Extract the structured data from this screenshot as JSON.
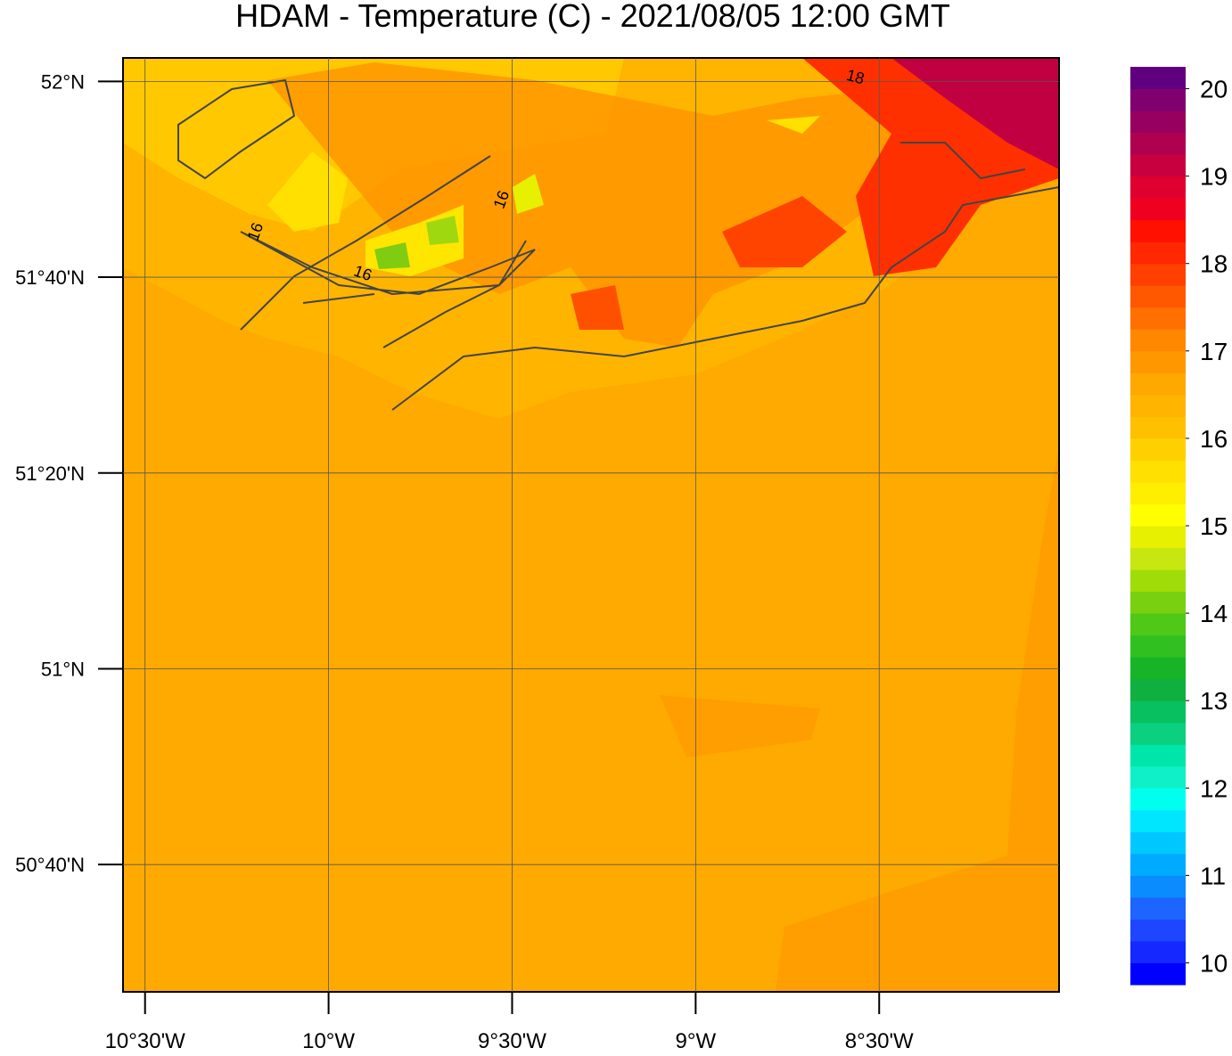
{
  "title": "HDAM - Temperature (C)  -  2021/08/05  12:00 GMT",
  "map": {
    "xlim": [
      -10.56,
      -8.01
    ],
    "ylim": [
      50.45,
      52.04
    ],
    "xticks": [
      {
        "value": -10.5,
        "label": "10°30'W"
      },
      {
        "value": -10,
        "label": "10°W"
      },
      {
        "value": -9.5,
        "label": "9°30'W"
      },
      {
        "value": -9,
        "label": "9°W"
      },
      {
        "value": -8.5,
        "label": "8°30'W"
      }
    ],
    "yticks": [
      {
        "value": 52,
        "label": "52°N"
      },
      {
        "value": 51.6667,
        "label": "51°40'N"
      },
      {
        "value": 51.3333,
        "label": "51°20'N"
      },
      {
        "value": 51,
        "label": "51°N"
      },
      {
        "value": 50.6667,
        "label": "50°40'N"
      }
    ],
    "grid": true,
    "contour_labels": [
      "16",
      "16",
      "16",
      "18"
    ]
  },
  "colorbar": {
    "lim": [
      9.75,
      20.25
    ],
    "ticks": [
      10,
      11,
      12,
      13,
      14,
      15,
      16,
      17,
      18,
      19,
      20
    ],
    "colors": [
      "#0000ff",
      "#1428ff",
      "#1e46ff",
      "#1e64ff",
      "#0a8cff",
      "#00aaff",
      "#00c8ff",
      "#00e6ff",
      "#00ffee",
      "#10f0c8",
      "#00e6aa",
      "#0ad080",
      "#08c060",
      "#10b040",
      "#18b428",
      "#30c020",
      "#50c818",
      "#78d010",
      "#a0dc08",
      "#c8e610",
      "#e6f000",
      "#ffff00",
      "#ffee00",
      "#ffe000",
      "#ffd000",
      "#ffc000",
      "#ffb400",
      "#ffa800",
      "#ff9800",
      "#ff8800",
      "#ff7000",
      "#ff5800",
      "#ff4000",
      "#ff2800",
      "#ff1000",
      "#f00020",
      "#e00030",
      "#c80040",
      "#b00050",
      "#980060",
      "#800070",
      "#600080"
    ]
  }
}
